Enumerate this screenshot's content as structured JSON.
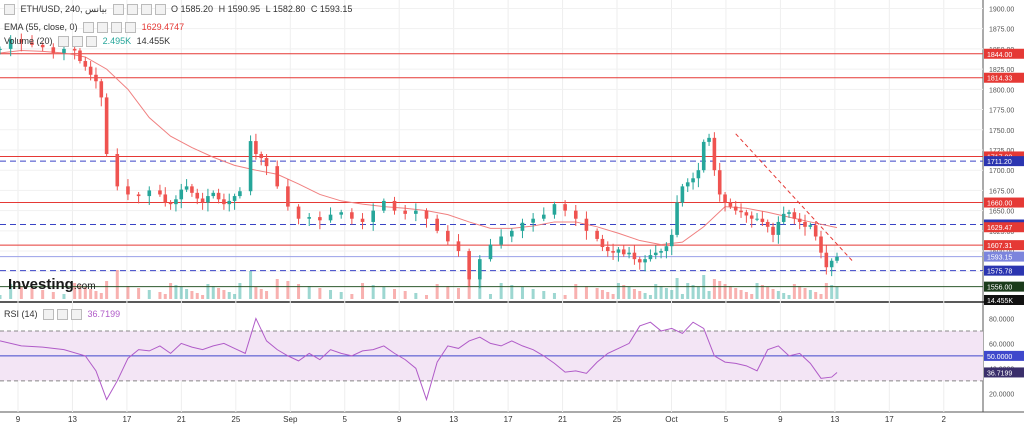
{
  "header": {
    "symbol": "ETH/USD, 240, بيانس",
    "ohlc": [
      "O 1585.20",
      "H 1590.95",
      "L 1582.80",
      "C 1593.15"
    ],
    "ema_label": "EMA (55, close, 0)",
    "ema_value": "1629.4747",
    "volume_label": "Volume (20)",
    "volume_values": [
      "2.495K",
      "14.455K"
    ]
  },
  "rsi_header": {
    "label": "RSI (14)",
    "value": "36.7199"
  },
  "logo": {
    "main": "Investing",
    "suffix": ".com"
  },
  "colors": {
    "up": "#26a69a",
    "down": "#ef5350",
    "hline": "#e53935",
    "dash": "#3a44c6",
    "ema": "#f08080",
    "rsi": "#b05bc8",
    "rsi_band": "#f3e5f5",
    "rsi_mid": "#3f48cc"
  },
  "chart_data": [
    {
      "type": "line",
      "title": "ETH/USD, 240",
      "x_labels": [
        "9",
        "13",
        "17",
        "21",
        "25",
        "Sep",
        "5",
        "9",
        "13",
        "17",
        "21",
        "25",
        "Oct",
        "5",
        "9",
        "13",
        "17",
        "2"
      ],
      "price_axis": {
        "ticks": [
          1900,
          1875,
          1850,
          1825,
          1800,
          1775,
          1750,
          1725,
          1700,
          1675,
          1650,
          1625,
          1600,
          1575
        ],
        "range": [
          1537,
          1908
        ]
      },
      "series": [
        {
          "name": "ETH/USD",
          "x": [
            0,
            2,
            4,
            6,
            8,
            10,
            12,
            14,
            15,
            16,
            17,
            18,
            19,
            20,
            22,
            24,
            26,
            28,
            30,
            31,
            32,
            33,
            34,
            35,
            36,
            37,
            38,
            39,
            40,
            41,
            42,
            43,
            44,
            45,
            47,
            48,
            49,
            50,
            52,
            54,
            56,
            58,
            60,
            62,
            64,
            66,
            68,
            70,
            72,
            74,
            76,
            78,
            80,
            82,
            84,
            86,
            88,
            90,
            92,
            94,
            96,
            98,
            100,
            102,
            104,
            106,
            108,
            110,
            112,
            113,
            114,
            115,
            116,
            117,
            118,
            119,
            120,
            121,
            122,
            123,
            124,
            125,
            126,
            127,
            128,
            129,
            130,
            131,
            132,
            133,
            134,
            135,
            136,
            137,
            138,
            139,
            140,
            141,
            142,
            143,
            144,
            145,
            146,
            147,
            148,
            149,
            150,
            151,
            152,
            153,
            154,
            155,
            156,
            157
          ],
          "close": [
            1850,
            1862,
            1858,
            1855,
            1852,
            1845,
            1850,
            1848,
            1835,
            1828,
            1818,
            1810,
            1790,
            1720,
            1680,
            1670,
            1668,
            1675,
            1670,
            1660,
            1658,
            1664,
            1676,
            1680,
            1672,
            1665,
            1660,
            1668,
            1672,
            1664,
            1658,
            1662,
            1668,
            1674,
            1736,
            1720,
            1715,
            1705,
            1680,
            1655,
            1640,
            1642,
            1638,
            1645,
            1648,
            1640,
            1636,
            1650,
            1662,
            1650,
            1646,
            1650,
            1640,
            1625,
            1612,
            1600,
            1565,
            1590,
            1608,
            1618,
            1625,
            1635,
            1640,
            1645,
            1658,
            1650,
            1640,
            1625,
            1615,
            1605,
            1600,
            1598,
            1602,
            1596,
            1598,
            1590,
            1586,
            1590,
            1595,
            1598,
            1600,
            1606,
            1620,
            1660,
            1680,
            1685,
            1690,
            1700,
            1735,
            1740,
            1700,
            1670,
            1660,
            1655,
            1650,
            1648,
            1644,
            1640,
            1640,
            1636,
            1630,
            1620,
            1636,
            1646,
            1648,
            1640,
            1636,
            1630,
            1632,
            1618,
            1598,
            1580,
            1588,
            1593
          ]
        },
        {
          "name": "EMA (55, close, 0)",
          "x": [
            0,
            4,
            8,
            12,
            16,
            20,
            24,
            28,
            32,
            36,
            40,
            44,
            48,
            52,
            56,
            60,
            64,
            68,
            72,
            76,
            80,
            84,
            88,
            92,
            96,
            100,
            104,
            108,
            112,
            116,
            120,
            124,
            128,
            132,
            136,
            140,
            144,
            148,
            152,
            157
          ],
          "values": [
            1845,
            1848,
            1847,
            1845,
            1840,
            1825,
            1800,
            1765,
            1742,
            1728,
            1716,
            1706,
            1700,
            1695,
            1683,
            1670,
            1662,
            1658,
            1655,
            1653,
            1650,
            1645,
            1636,
            1628,
            1628,
            1631,
            1636,
            1636,
            1630,
            1622,
            1613,
            1608,
            1611,
            1630,
            1655,
            1653,
            1648,
            1642,
            1636,
            1629
          ]
        }
      ],
      "horizontal_levels": [
        {
          "value": 1844.0,
          "label": "1844.00",
          "style": "solid"
        },
        {
          "value": 1814.33,
          "label": "1814.33",
          "style": "solid"
        },
        {
          "value": 1717.0,
          "label": "1717.00",
          "style": "solid"
        },
        {
          "value": 1711.2,
          "label": "1711.20",
          "style": "dashed"
        },
        {
          "value": 1660.0,
          "label": "1660.00",
          "style": "solid"
        },
        {
          "value": 1632.83,
          "label": "1632.83",
          "style": "dashed"
        },
        {
          "value": 1629.47,
          "label": "1629.47",
          "style": "ema"
        },
        {
          "value": 1607.31,
          "label": "1607.31",
          "style": "solid"
        },
        {
          "value": 1593.15,
          "label": "1593.15",
          "style": "price"
        },
        {
          "value": 1575.78,
          "label": "1575.78",
          "style": "dashed"
        },
        {
          "value": 1556.0,
          "label": "1556.00",
          "style": "level"
        }
      ],
      "volume_tag": "14.455K",
      "volume_label_text": "2"
    },
    {
      "type": "line",
      "title": "RSI (14)",
      "y_axis": {
        "ticks": [
          80,
          60,
          40,
          20
        ],
        "range": [
          5,
          90
        ]
      },
      "bands": {
        "upper": 70,
        "middle": 50,
        "lower": 30
      },
      "series": [
        {
          "name": "RSI (14)",
          "x": [
            0,
            4,
            8,
            12,
            16,
            18,
            20,
            22,
            24,
            26,
            28,
            30,
            32,
            34,
            36,
            38,
            40,
            42,
            44,
            46,
            48,
            50,
            52,
            54,
            56,
            58,
            60,
            62,
            64,
            66,
            68,
            70,
            72,
            74,
            76,
            78,
            80,
            82,
            84,
            86,
            88,
            90,
            92,
            94,
            96,
            98,
            100,
            102,
            104,
            106,
            108,
            110,
            112,
            114,
            116,
            118,
            120,
            122,
            124,
            126,
            128,
            130,
            132,
            134,
            136,
            138,
            140,
            142,
            144,
            146,
            148,
            150,
            152,
            154,
            156,
            157
          ],
          "values": [
            62,
            58,
            57,
            55,
            50,
            38,
            15,
            30,
            48,
            55,
            54,
            58,
            52,
            60,
            57,
            55,
            58,
            60,
            56,
            52,
            80,
            62,
            55,
            50,
            46,
            52,
            47,
            55,
            52,
            50,
            54,
            55,
            58,
            52,
            47,
            40,
            15,
            45,
            58,
            56,
            62,
            65,
            60,
            58,
            62,
            58,
            55,
            50,
            44,
            37,
            38,
            36,
            45,
            52,
            56,
            60,
            74,
            77,
            70,
            72,
            68,
            77,
            72,
            50,
            45,
            44,
            42,
            38,
            55,
            58,
            50,
            52,
            44,
            32,
            33,
            36.72
          ]
        }
      ],
      "rsi_labels": {
        "upper": "",
        "middle": "50.0000",
        "value": "36.7199"
      }
    }
  ]
}
